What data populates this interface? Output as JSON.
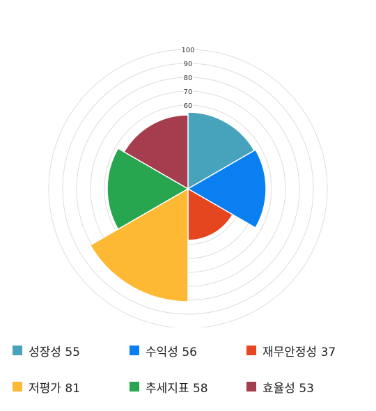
{
  "chart_data": {
    "type": "polar-area",
    "r_ticks": [
      60,
      70,
      80,
      90,
      100
    ],
    "r_range": [
      0,
      100
    ],
    "grid": true,
    "legend_position": "bottom",
    "series": [
      {
        "name": "성장성",
        "value": 55,
        "color": "#47a3bc"
      },
      {
        "name": "수익성",
        "value": 56,
        "color": "#0a7ff2"
      },
      {
        "name": "재무안정성",
        "value": 37,
        "color": "#e5461f"
      },
      {
        "name": "저평가",
        "value": 81,
        "color": "#fdb933"
      },
      {
        "name": "추세지표",
        "value": 58,
        "color": "#28a64f"
      },
      {
        "name": "효율성",
        "value": 53,
        "color": "#a63d4e"
      }
    ]
  }
}
